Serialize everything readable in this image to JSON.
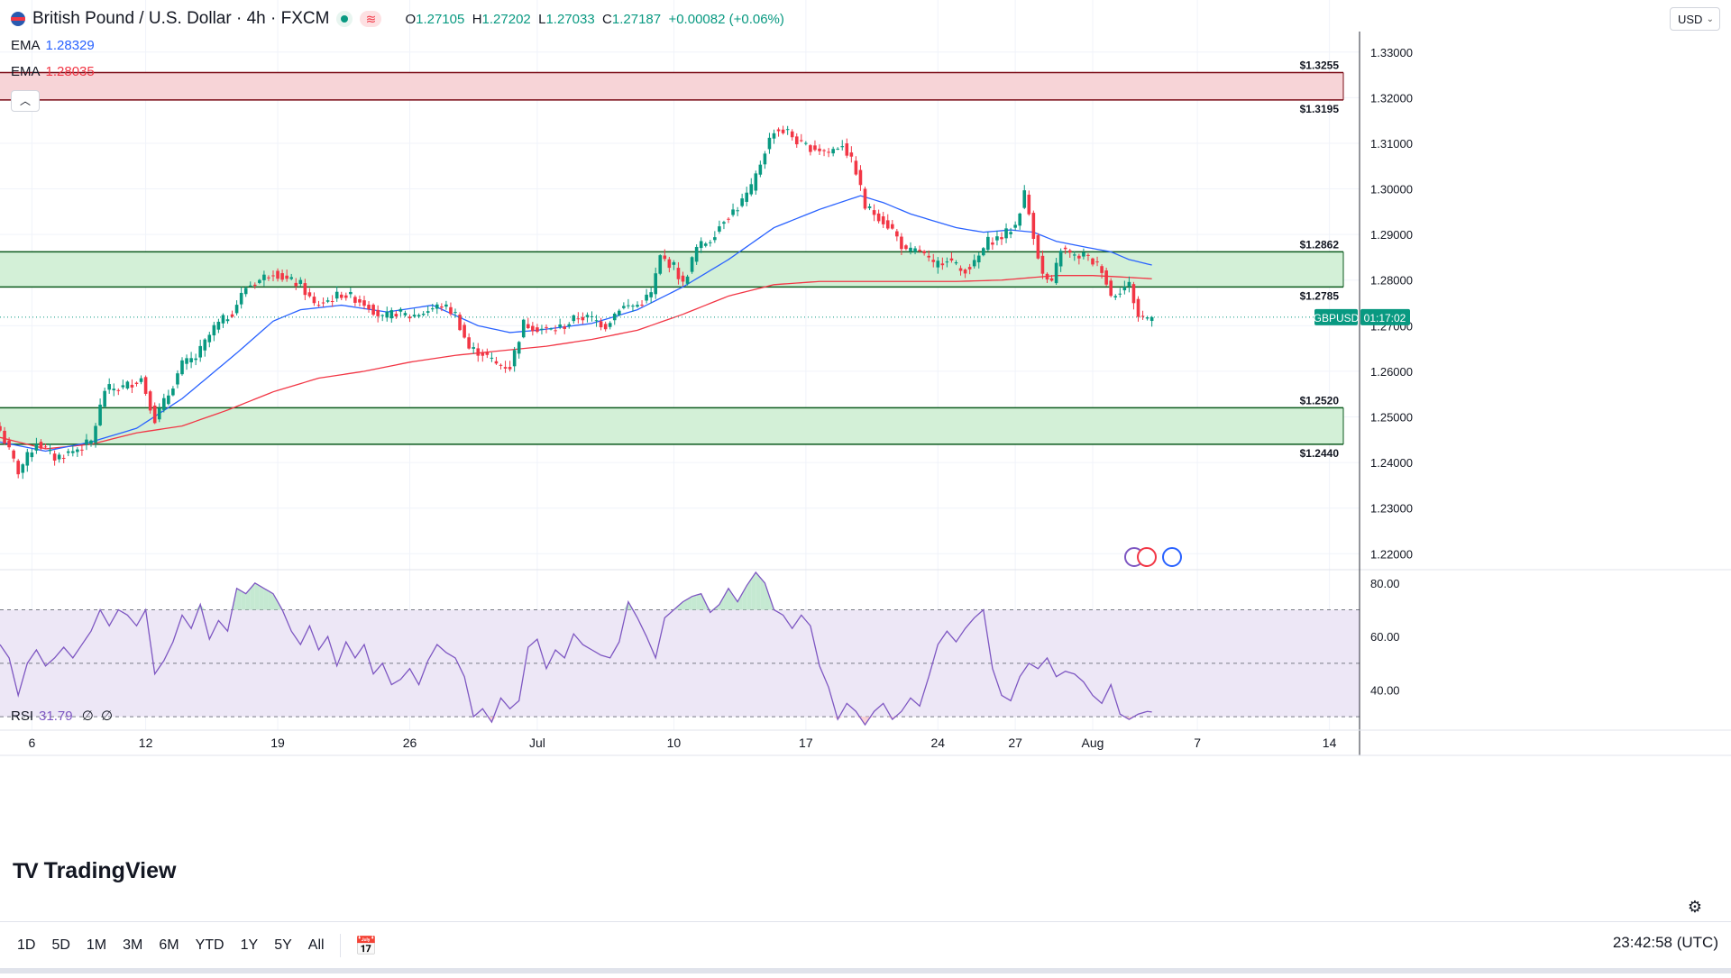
{
  "symbol": {
    "title": "British Pound / U.S. Dollar · 4h · FXCM",
    "open_label": "O",
    "open": "1.27105",
    "high_label": "H",
    "high": "1.27202",
    "low_label": "L",
    "low": "1.27033",
    "close_label": "C",
    "close": "1.27187",
    "change": "+0.00082 (+0.06%)"
  },
  "ema_fast": {
    "label": "EMA",
    "value": "1.28329",
    "color": "#2962ff"
  },
  "ema_slow": {
    "label": "EMA",
    "value": "1.28035",
    "color": "#f23645"
  },
  "currency": {
    "label": "USD"
  },
  "rsi": {
    "label": "RSI",
    "value": "31.79",
    "extra1": "∅",
    "extra2": "∅",
    "color": "#7e57c2"
  },
  "price_tag": {
    "symbol": "GBPUSD",
    "countdown": "01:17:02"
  },
  "zones": [
    {
      "name": "resistance",
      "top": 1.3255,
      "bottom": 1.3195,
      "top_label": "$1.3255",
      "bottom_label": "$1.3195",
      "color": "#f23645"
    },
    {
      "name": "pivot",
      "top": 1.2862,
      "bottom": 1.2785,
      "top_label": "$1.2862",
      "bottom_label": "$1.2785",
      "color": "#089981"
    },
    {
      "name": "support",
      "top": 1.252,
      "bottom": 1.244,
      "top_label": "$1.2520",
      "bottom_label": "$1.2440",
      "color": "#089981"
    }
  ],
  "chart_data": {
    "type": "candlestick",
    "title": "British Pound / U.S. Dollar · 4h · FXCM",
    "price_ticks": [
      "1.33000",
      "1.32000",
      "1.31000",
      "1.30000",
      "1.29000",
      "1.28000",
      "1.27000",
      "1.26000",
      "1.25000",
      "1.24000",
      "1.23000",
      "1.22000"
    ],
    "price_range": [
      1.2165,
      1.3345
    ],
    "x_ticks": [
      {
        "label": "6",
        "bar": 7
      },
      {
        "label": "12",
        "bar": 32
      },
      {
        "label": "19",
        "bar": 61
      },
      {
        "label": "26",
        "bar": 90
      },
      {
        "label": "Jul",
        "bar": 118
      },
      {
        "label": "10",
        "bar": 148
      },
      {
        "label": "17",
        "bar": 177
      },
      {
        "label": "24",
        "bar": 206
      },
      {
        "label": "27",
        "bar": 223
      },
      {
        "label": "Aug",
        "bar": 240
      },
      {
        "label": "7",
        "bar": 263
      },
      {
        "label": "14",
        "bar": 292
      }
    ],
    "close_anchors": [
      [
        0,
        1.247
      ],
      [
        4,
        1.238
      ],
      [
        8,
        1.2445
      ],
      [
        12,
        1.241
      ],
      [
        16,
        1.2425
      ],
      [
        20,
        1.2445
      ],
      [
        23,
        1.256
      ],
      [
        27,
        1.2565
      ],
      [
        31,
        1.2585
      ],
      [
        34,
        1.2495
      ],
      [
        37,
        1.255
      ],
      [
        40,
        1.2615
      ],
      [
        43,
        1.263
      ],
      [
        47,
        1.2695
      ],
      [
        51,
        1.273
      ],
      [
        54,
        1.2785
      ],
      [
        57,
        1.28
      ],
      [
        60,
        1.282
      ],
      [
        63,
        1.28
      ],
      [
        66,
        1.279
      ],
      [
        69,
        1.2745
      ],
      [
        72,
        1.2755
      ],
      [
        75,
        1.277
      ],
      [
        78,
        1.276
      ],
      [
        81,
        1.2745
      ],
      [
        84,
        1.2715
      ],
      [
        87,
        1.273
      ],
      [
        90,
        1.272
      ],
      [
        93,
        1.273
      ],
      [
        97,
        1.2745
      ],
      [
        100,
        1.2725
      ],
      [
        103,
        1.265
      ],
      [
        106,
        1.264
      ],
      [
        109,
        1.2615
      ],
      [
        112,
        1.261
      ],
      [
        115,
        1.2705
      ],
      [
        118,
        1.2695
      ],
      [
        121,
        1.269
      ],
      [
        124,
        1.27
      ],
      [
        127,
        1.272
      ],
      [
        130,
        1.2715
      ],
      [
        133,
        1.27
      ],
      [
        136,
        1.274
      ],
      [
        140,
        1.2745
      ],
      [
        143,
        1.277
      ],
      [
        145,
        1.285
      ],
      [
        148,
        1.283
      ],
      [
        150,
        1.279
      ],
      [
        153,
        1.287
      ],
      [
        156,
        1.289
      ],
      [
        159,
        1.2935
      ],
      [
        162,
        1.296
      ],
      [
        165,
        1.3
      ],
      [
        168,
        1.3085
      ],
      [
        170,
        1.313
      ],
      [
        173,
        1.3125
      ],
      [
        176,
        1.3095
      ],
      [
        179,
        1.309
      ],
      [
        182,
        1.308
      ],
      [
        185,
        1.31
      ],
      [
        188,
        1.304
      ],
      [
        190,
        1.296
      ],
      [
        193,
        1.294
      ],
      [
        196,
        1.291
      ],
      [
        199,
        1.286
      ],
      [
        202,
        1.2865
      ],
      [
        205,
        1.283
      ],
      [
        208,
        1.285
      ],
      [
        211,
        1.282
      ],
      [
        214,
        1.2835
      ],
      [
        217,
        1.2885
      ],
      [
        220,
        1.2895
      ],
      [
        223,
        1.292
      ],
      [
        225,
        1.299
      ],
      [
        227,
        1.29
      ],
      [
        229,
        1.281
      ],
      [
        231,
        1.279
      ],
      [
        233,
        1.287
      ],
      [
        236,
        1.285
      ],
      [
        238,
        1.2855
      ],
      [
        240,
        1.284
      ],
      [
        242,
        1.2825
      ],
      [
        244,
        1.2765
      ],
      [
        246,
        1.278
      ],
      [
        248,
        1.279
      ],
      [
        250,
        1.272
      ],
      [
        252,
        1.2718
      ],
      [
        253,
        1.27187
      ]
    ],
    "ema_fast_anchors": [
      [
        0,
        1.2445
      ],
      [
        10,
        1.2425
      ],
      [
        20,
        1.2445
      ],
      [
        30,
        1.2475
      ],
      [
        40,
        1.254
      ],
      [
        52,
        1.264
      ],
      [
        60,
        1.271
      ],
      [
        66,
        1.2735
      ],
      [
        75,
        1.2745
      ],
      [
        85,
        1.273
      ],
      [
        95,
        1.2745
      ],
      [
        105,
        1.27
      ],
      [
        112,
        1.2685
      ],
      [
        118,
        1.269
      ],
      [
        130,
        1.2705
      ],
      [
        140,
        1.2735
      ],
      [
        150,
        1.2785
      ],
      [
        160,
        1.2845
      ],
      [
        170,
        1.2915
      ],
      [
        180,
        1.2955
      ],
      [
        189,
        1.2985
      ],
      [
        194,
        1.297
      ],
      [
        200,
        1.2945
      ],
      [
        210,
        1.2915
      ],
      [
        216,
        1.2905
      ],
      [
        222,
        1.291
      ],
      [
        227,
        1.2905
      ],
      [
        232,
        1.2885
      ],
      [
        238,
        1.2873
      ],
      [
        244,
        1.2862
      ],
      [
        248,
        1.2845
      ],
      [
        253,
        1.2833
      ]
    ],
    "ema_slow_anchors": [
      [
        0,
        1.2455
      ],
      [
        10,
        1.243
      ],
      [
        20,
        1.244
      ],
      [
        30,
        1.2465
      ],
      [
        40,
        1.248
      ],
      [
        50,
        1.2515
      ],
      [
        60,
        1.2555
      ],
      [
        70,
        1.2585
      ],
      [
        80,
        1.26
      ],
      [
        90,
        1.262
      ],
      [
        100,
        1.2635
      ],
      [
        110,
        1.2645
      ],
      [
        120,
        1.2655
      ],
      [
        130,
        1.267
      ],
      [
        140,
        1.269
      ],
      [
        150,
        1.2725
      ],
      [
        160,
        1.2765
      ],
      [
        170,
        1.279
      ],
      [
        180,
        1.2797
      ],
      [
        190,
        1.2797
      ],
      [
        200,
        1.2797
      ],
      [
        210,
        1.2797
      ],
      [
        220,
        1.28
      ],
      [
        226,
        1.2805
      ],
      [
        232,
        1.281
      ],
      [
        240,
        1.281
      ],
      [
        246,
        1.2807
      ],
      [
        253,
        1.2803
      ]
    ],
    "rsi_ticks": [
      "80.00",
      "60.00",
      "40.00"
    ],
    "rsi_range": [
      25,
      85
    ],
    "rsi_levels": {
      "upper": 70,
      "middle": 50,
      "lower": 30
    },
    "rsi_anchors": [
      [
        0,
        57
      ],
      [
        2,
        52
      ],
      [
        4,
        38
      ],
      [
        6,
        50
      ],
      [
        8,
        55
      ],
      [
        10,
        49
      ],
      [
        12,
        52
      ],
      [
        14,
        56
      ],
      [
        16,
        52
      ],
      [
        18,
        57
      ],
      [
        20,
        62
      ],
      [
        22,
        70
      ],
      [
        24,
        64
      ],
      [
        26,
        70
      ],
      [
        28,
        68
      ],
      [
        30,
        64
      ],
      [
        32,
        70
      ],
      [
        34,
        46
      ],
      [
        36,
        51
      ],
      [
        38,
        58
      ],
      [
        40,
        68
      ],
      [
        42,
        63
      ],
      [
        44,
        72
      ],
      [
        46,
        59
      ],
      [
        48,
        66
      ],
      [
        50,
        62
      ],
      [
        52,
        78
      ],
      [
        54,
        76
      ],
      [
        56,
        80
      ],
      [
        58,
        78
      ],
      [
        60,
        76
      ],
      [
        62,
        70
      ],
      [
        64,
        62
      ],
      [
        66,
        57
      ],
      [
        68,
        64
      ],
      [
        70,
        55
      ],
      [
        72,
        60
      ],
      [
        74,
        49
      ],
      [
        76,
        58
      ],
      [
        78,
        52
      ],
      [
        80,
        57
      ],
      [
        82,
        46
      ],
      [
        84,
        50
      ],
      [
        86,
        42
      ],
      [
        88,
        44
      ],
      [
        90,
        48
      ],
      [
        92,
        42
      ],
      [
        94,
        51
      ],
      [
        96,
        57
      ],
      [
        98,
        54
      ],
      [
        100,
        52
      ],
      [
        102,
        45
      ],
      [
        104,
        30
      ],
      [
        106,
        33
      ],
      [
        108,
        28
      ],
      [
        110,
        37
      ],
      [
        112,
        33
      ],
      [
        114,
        36
      ],
      [
        116,
        56
      ],
      [
        118,
        59
      ],
      [
        120,
        48
      ],
      [
        122,
        55
      ],
      [
        124,
        52
      ],
      [
        126,
        61
      ],
      [
        128,
        57
      ],
      [
        130,
        55
      ],
      [
        132,
        53
      ],
      [
        134,
        52
      ],
      [
        136,
        58
      ],
      [
        138,
        73
      ],
      [
        140,
        67
      ],
      [
        142,
        60
      ],
      [
        144,
        52
      ],
      [
        146,
        67
      ],
      [
        148,
        70
      ],
      [
        150,
        73
      ],
      [
        152,
        75
      ],
      [
        154,
        76
      ],
      [
        156,
        69
      ],
      [
        158,
        72
      ],
      [
        160,
        78
      ],
      [
        162,
        73
      ],
      [
        164,
        79
      ],
      [
        166,
        84
      ],
      [
        168,
        80
      ],
      [
        170,
        70
      ],
      [
        172,
        68
      ],
      [
        174,
        63
      ],
      [
        176,
        68
      ],
      [
        178,
        64
      ],
      [
        180,
        49
      ],
      [
        182,
        41
      ],
      [
        184,
        29
      ],
      [
        186,
        35
      ],
      [
        188,
        32
      ],
      [
        190,
        27
      ],
      [
        192,
        32
      ],
      [
        194,
        35
      ],
      [
        196,
        29
      ],
      [
        198,
        32
      ],
      [
        200,
        37
      ],
      [
        202,
        34
      ],
      [
        204,
        45
      ],
      [
        206,
        57
      ],
      [
        208,
        62
      ],
      [
        210,
        58
      ],
      [
        212,
        63
      ],
      [
        214,
        67
      ],
      [
        216,
        70
      ],
      [
        218,
        48
      ],
      [
        220,
        38
      ],
      [
        222,
        36
      ],
      [
        224,
        45
      ],
      [
        226,
        50
      ],
      [
        228,
        48
      ],
      [
        230,
        52
      ],
      [
        232,
        45
      ],
      [
        234,
        47
      ],
      [
        236,
        46
      ],
      [
        238,
        43
      ],
      [
        240,
        38
      ],
      [
        242,
        35
      ],
      [
        244,
        42
      ],
      [
        246,
        31
      ],
      [
        248,
        29
      ],
      [
        250,
        31
      ],
      [
        252,
        32
      ],
      [
        253,
        31.79
      ]
    ]
  }
}
